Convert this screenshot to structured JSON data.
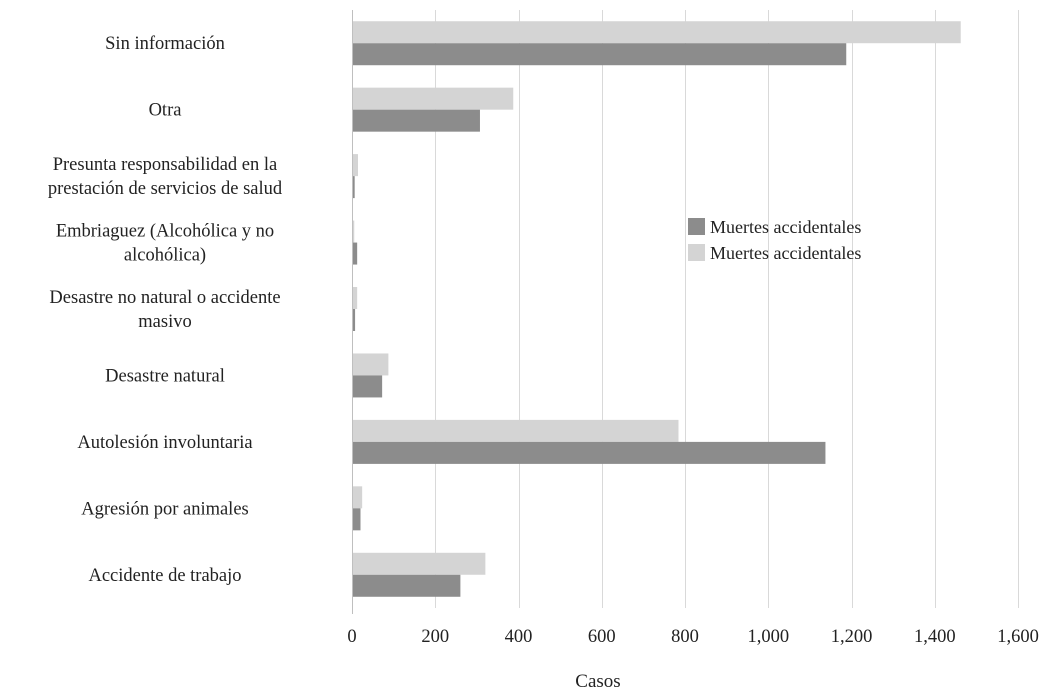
{
  "chart_data": {
    "type": "bar",
    "orientation": "horizontal",
    "categories": [
      "Sin información",
      "Otra",
      "Presunta responsabilidad en la prestación de servicios de salud",
      "Embriaguez (Alcohólica y no alcohólica)",
      "Desastre no natural o accidente masivo",
      "Desastre natural",
      "Autolesión involuntaria",
      "Agresión por animales",
      "Accidente de trabajo"
    ],
    "category_lines": [
      [
        "Sin información"
      ],
      [
        "Otra"
      ],
      [
        "Presunta responsabilidad en la",
        "prestación de servicios de salud"
      ],
      [
        "Embriaguez (Alcohólica y no",
        "alcohólica)"
      ],
      [
        "Desastre no natural o accidente",
        "masivo"
      ],
      [
        "Desastre natural"
      ],
      [
        "Autolesión involuntaria"
      ],
      [
        "Agresión por animales"
      ],
      [
        "Accidente de trabajo"
      ]
    ],
    "series": [
      {
        "name": "Muertes accidentales",
        "color": "#8c8c8c",
        "values": [
          1185,
          305,
          4,
          10,
          5,
          70,
          1135,
          18,
          258
        ]
      },
      {
        "name": "Muertes accidentales",
        "color": "#d4d4d4",
        "values": [
          1460,
          385,
          12,
          3,
          10,
          85,
          782,
          22,
          318
        ]
      }
    ],
    "xlabel": "Casos",
    "ylabel": "",
    "xlim": [
      0,
      1600
    ],
    "ticks": [
      0,
      200,
      400,
      600,
      800,
      1000,
      1200,
      1400,
      1600
    ],
    "tick_labels": [
      "0",
      "200",
      "400",
      "600",
      "800",
      "1,000",
      "1,200",
      "1,400",
      "1,600"
    ],
    "grid": true,
    "legend_position": "right-center"
  }
}
